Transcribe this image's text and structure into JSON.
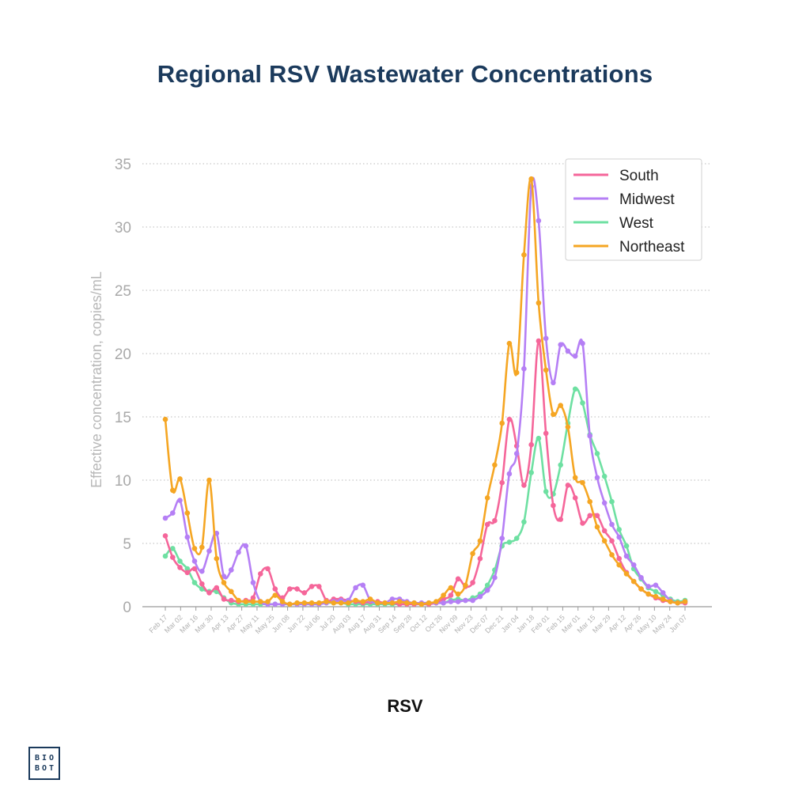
{
  "page": {
    "logo_line1": "BIO",
    "logo_line2": "BOT"
  },
  "chart_data": {
    "type": "line",
    "title": "Regional RSV Wastewater Concentrations",
    "subtitle": "RSV",
    "xlabel": "",
    "ylabel": "Effective concentration, copies/mL",
    "ylim": [
      0,
      35
    ],
    "yticks": [
      0,
      5,
      10,
      15,
      20,
      25,
      30,
      35
    ],
    "grid": "horizontal dotted",
    "legend_position": "top-right",
    "x_tick_labels": [
      "Feb 17",
      "Mar 02",
      "Mar 16",
      "Mar 30",
      "Apr 13",
      "Apr 27",
      "May 11",
      "May 25",
      "Jun 08",
      "Jun 22",
      "Jul 06",
      "Jul 20",
      "Aug 03",
      "Aug 17",
      "Aug 31",
      "Sep 14",
      "Sep 28",
      "Oct 12",
      "Oct 26",
      "Nov 09",
      "Nov 23",
      "Dec 07",
      "Dec 21",
      "Jan 04",
      "Jan 18",
      "Feb 01",
      "Feb 15",
      "Mar 01",
      "Mar 15",
      "Mar 29",
      "Apr 12",
      "Apr 26",
      "May 10",
      "May 24",
      "Jun 07"
    ],
    "series": [
      {
        "name": "South",
        "color": "#f5669a",
        "values": [
          5.6,
          3.9,
          3.1,
          2.7,
          3.0,
          1.8,
          1.1,
          1.5,
          0.6,
          0.5,
          0.4,
          0.5,
          0.7,
          2.6,
          3.0,
          1.4,
          0.7,
          1.4,
          1.4,
          1.1,
          1.6,
          1.6,
          0.5,
          0.6,
          0.6,
          0.5,
          0.4,
          0.3,
          0.4,
          0.4,
          0.3,
          0.3,
          0.2,
          0.2,
          0.2,
          0.2,
          0.2,
          0.3,
          0.6,
          0.9,
          2.2,
          1.6,
          1.9,
          3.8,
          6.5,
          6.8,
          9.8,
          14.8,
          12.7,
          9.6,
          12.8,
          21.0,
          13.7,
          8.0,
          6.9,
          9.6,
          8.6,
          6.6,
          7.2,
          7.2,
          6.0,
          5.2,
          3.8,
          2.7,
          2.0,
          1.4,
          1.0,
          0.7,
          0.5,
          0.4,
          0.3,
          0.3
        ]
      },
      {
        "name": "Midwest",
        "color": "#b57ff5",
        "values": [
          7.0,
          7.4,
          8.4,
          5.5,
          3.6,
          2.8,
          4.4,
          5.8,
          2.4,
          2.9,
          4.3,
          4.8,
          1.9,
          0.4,
          0.2,
          0.2,
          0.2,
          0.2,
          0.2,
          0.2,
          0.2,
          0.2,
          0.3,
          0.4,
          0.5,
          0.5,
          1.5,
          1.7,
          0.5,
          0.3,
          0.3,
          0.6,
          0.6,
          0.4,
          0.3,
          0.3,
          0.3,
          0.3,
          0.3,
          0.4,
          0.4,
          0.5,
          0.5,
          0.8,
          1.3,
          2.3,
          5.4,
          10.5,
          12.1,
          18.8,
          33.2,
          30.5,
          21.2,
          17.7,
          20.7,
          20.2,
          19.8,
          20.8,
          13.5,
          10.2,
          8.2,
          6.5,
          5.5,
          4.0,
          3.3,
          2.3,
          1.6,
          1.7,
          1.1,
          0.5,
          0.3,
          0.4
        ]
      },
      {
        "name": "West",
        "color": "#6ee0a2",
        "values": [
          4.0,
          4.6,
          3.6,
          3.0,
          1.9,
          1.4,
          1.2,
          1.2,
          0.7,
          0.3,
          0.2,
          0.2,
          0.2,
          0.2,
          0.2,
          0.2,
          0.2,
          0.2,
          0.2,
          0.2,
          0.2,
          0.2,
          0.3,
          0.3,
          0.3,
          0.2,
          0.2,
          0.2,
          0.2,
          0.2,
          0.2,
          0.2,
          0.2,
          0.2,
          0.2,
          0.2,
          0.2,
          0.3,
          0.3,
          0.5,
          0.6,
          0.5,
          0.7,
          1.0,
          1.7,
          2.9,
          4.8,
          5.1,
          5.4,
          6.7,
          10.6,
          13.3,
          9.1,
          8.9,
          11.2,
          14.5,
          17.2,
          16.1,
          13.6,
          12.1,
          10.3,
          8.3,
          6.1,
          4.8,
          3.0,
          2.2,
          1.5,
          1.2,
          0.9,
          0.6,
          0.4,
          0.5
        ]
      },
      {
        "name": "Northeast",
        "color": "#f5a623",
        "values": [
          14.8,
          9.2,
          10.1,
          7.4,
          4.6,
          4.7,
          10.0,
          3.8,
          1.9,
          1.2,
          0.5,
          0.4,
          0.4,
          0.4,
          0.4,
          0.9,
          0.4,
          0.2,
          0.3,
          0.3,
          0.3,
          0.3,
          0.4,
          0.3,
          0.3,
          0.3,
          0.5,
          0.4,
          0.6,
          0.3,
          0.3,
          0.3,
          0.4,
          0.3,
          0.3,
          0.2,
          0.3,
          0.4,
          0.9,
          1.5,
          1.0,
          1.7,
          4.2,
          5.2,
          8.6,
          11.2,
          14.5,
          20.8,
          18.5,
          27.8,
          33.8,
          24.0,
          18.7,
          15.2,
          15.9,
          14.2,
          10.2,
          9.8,
          8.3,
          6.3,
          5.2,
          4.1,
          3.3,
          2.6,
          2.0,
          1.4,
          1.0,
          0.8,
          0.6,
          0.4,
          0.3,
          0.4
        ]
      }
    ]
  }
}
